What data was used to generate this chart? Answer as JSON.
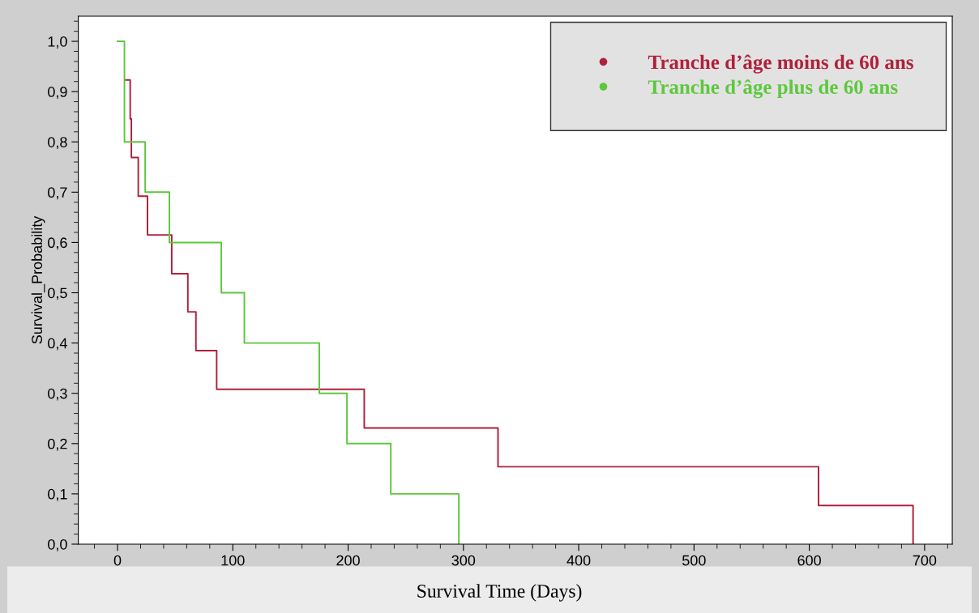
{
  "chart_data": {
    "type": "step",
    "xlabel": "Survival Time (Days)",
    "ylabel": "Survival_Probability",
    "series": [
      {
        "name": "Tranche d’âge moins de 60 ans",
        "color": "#b0203a",
        "x": [
          7,
          11,
          12,
          18,
          26,
          47,
          61,
          68,
          86,
          214,
          330,
          608,
          690
        ],
        "values": [
          0.923,
          0.846,
          0.769,
          0.692,
          0.615,
          0.538,
          0.462,
          0.385,
          0.308,
          0.231,
          0.154,
          0.077,
          0.0
        ]
      },
      {
        "name": "Tranche d’âge plus de 60 ans",
        "color": "#5cc83c",
        "x": [
          0,
          6,
          24,
          45,
          90,
          110,
          175,
          199,
          237,
          296
        ],
        "values": [
          1.0,
          0.8,
          0.7,
          0.6,
          0.5,
          0.4,
          0.3,
          0.2,
          0.1,
          0.0
        ]
      }
    ],
    "xlim": [
      -34,
      724
    ],
    "ylim": [
      0,
      1.05
    ],
    "xticks": [
      0,
      100,
      200,
      300,
      400,
      500,
      600,
      700
    ],
    "yticks": [
      {
        "value": 0,
        "label": "0,0"
      },
      {
        "value": 0.1,
        "label": "0,1"
      },
      {
        "value": 0.2,
        "label": "0,2"
      },
      {
        "value": 0.3,
        "label": "0,3"
      },
      {
        "value": 0.4,
        "label": "0,4"
      },
      {
        "value": 0.5,
        "label": "0,5"
      },
      {
        "value": 0.6,
        "label": "0,6"
      },
      {
        "value": 0.7,
        "label": "0,7"
      },
      {
        "value": 0.8,
        "label": "0,8"
      },
      {
        "value": 0.9,
        "label": "0,9"
      },
      {
        "value": 1.0,
        "label": "1,0"
      }
    ],
    "legend": "top right",
    "grid": false
  }
}
